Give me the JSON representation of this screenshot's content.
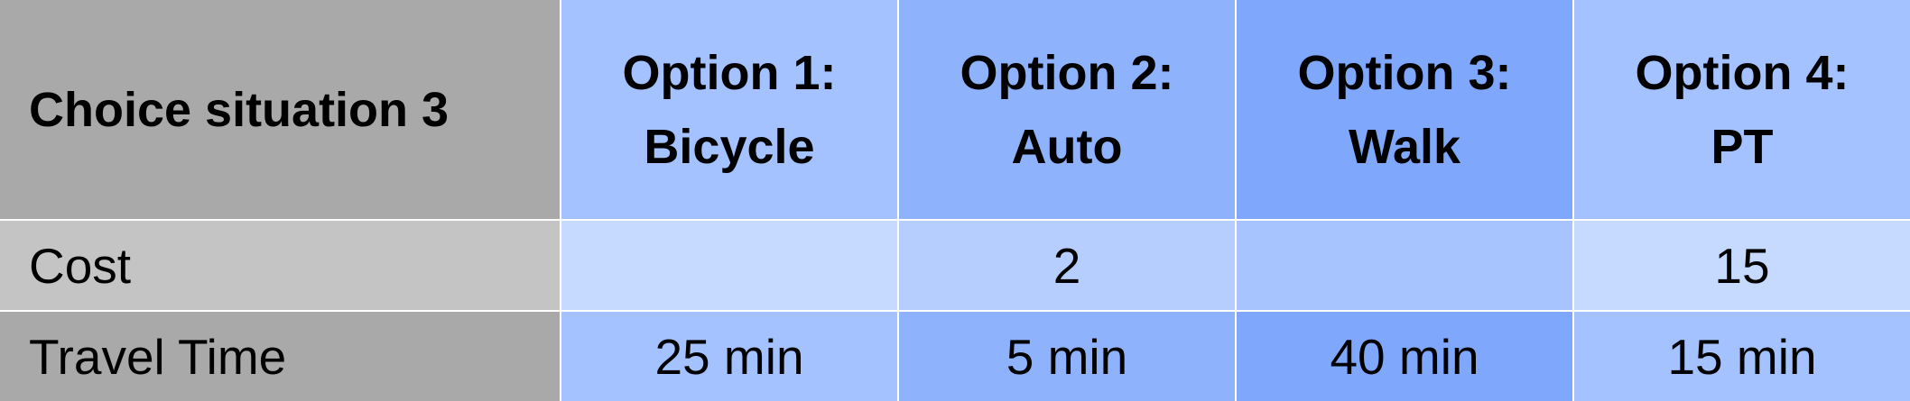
{
  "header": {
    "situation": "Choice situation 3",
    "options": [
      {
        "line1": "Option 1:",
        "line2": "Bicycle"
      },
      {
        "line1": "Option 2:",
        "line2": "Auto"
      },
      {
        "line1": "Option 3:",
        "line2": "Walk"
      },
      {
        "line1": "Option 4:",
        "line2": "PT"
      }
    ]
  },
  "rows": {
    "cost": {
      "label": "Cost",
      "values": [
        "",
        "2",
        "",
        "15"
      ]
    },
    "travel_time": {
      "label": "Travel Time",
      "values": [
        "25 min",
        "5 min",
        "40 min",
        "15 min"
      ]
    }
  },
  "colors": {
    "label_header_bg": "#a9a9a9",
    "label_cost_bg": "#c4c4c4",
    "label_time_bg": "#a9a9a9",
    "header_bg": [
      "#a3c2ff",
      "#8eb2fc",
      "#7fa8fc",
      "#a3c2ff"
    ],
    "cost_bg": [
      "#c6daff",
      "#b6cefd",
      "#a7c4fe",
      "#c6daff"
    ],
    "time_bg": [
      "#a3c2ff",
      "#8eb2fc",
      "#7fa8fc",
      "#a3c2ff"
    ]
  }
}
